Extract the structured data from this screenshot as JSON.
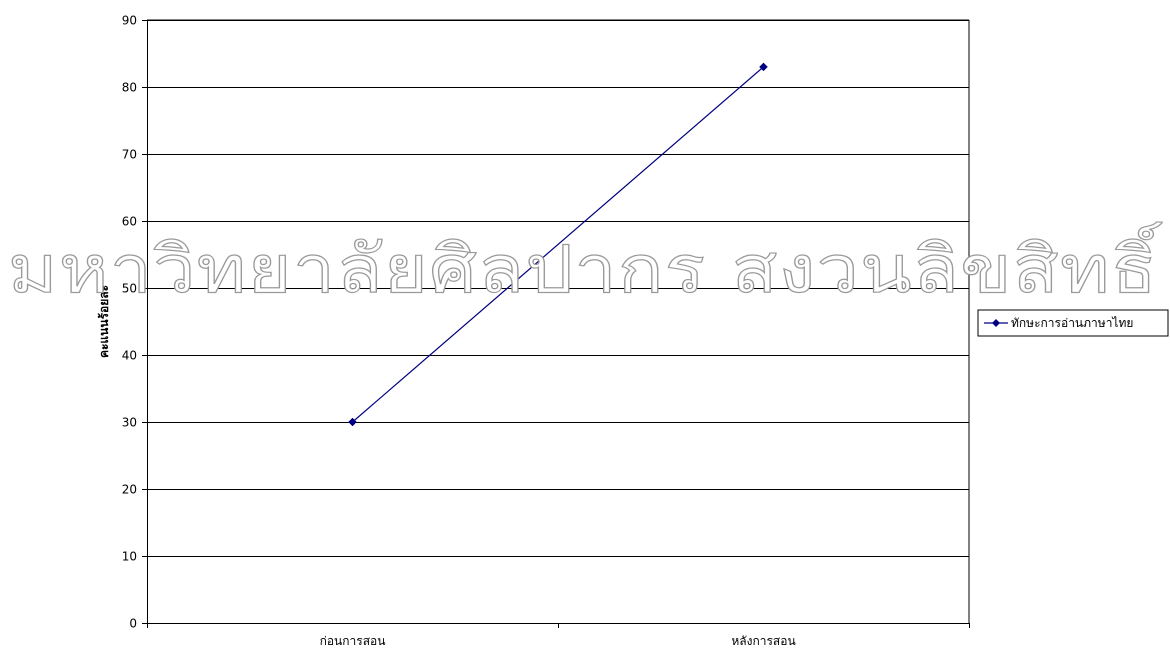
{
  "chart_data": {
    "type": "line",
    "title": "",
    "xlabel": "",
    "ylabel": "คะแนนร้อยละ",
    "categories": [
      "ก่อนการสอน",
      "หลังการสอน"
    ],
    "series": [
      {
        "name": "ทักษะการอ่านภาษาไทย",
        "values": [
          30,
          83
        ],
        "color": "#000080",
        "marker": "diamond"
      }
    ],
    "ylim": [
      0,
      90
    ],
    "yticks": [
      0,
      10,
      20,
      30,
      40,
      50,
      60,
      70,
      80,
      90
    ],
    "grid": true,
    "legend": "right"
  },
  "watermark": {
    "text": "มหาวิทยาลัยศิลปากร สงวนลิขสิทธิ์"
  }
}
